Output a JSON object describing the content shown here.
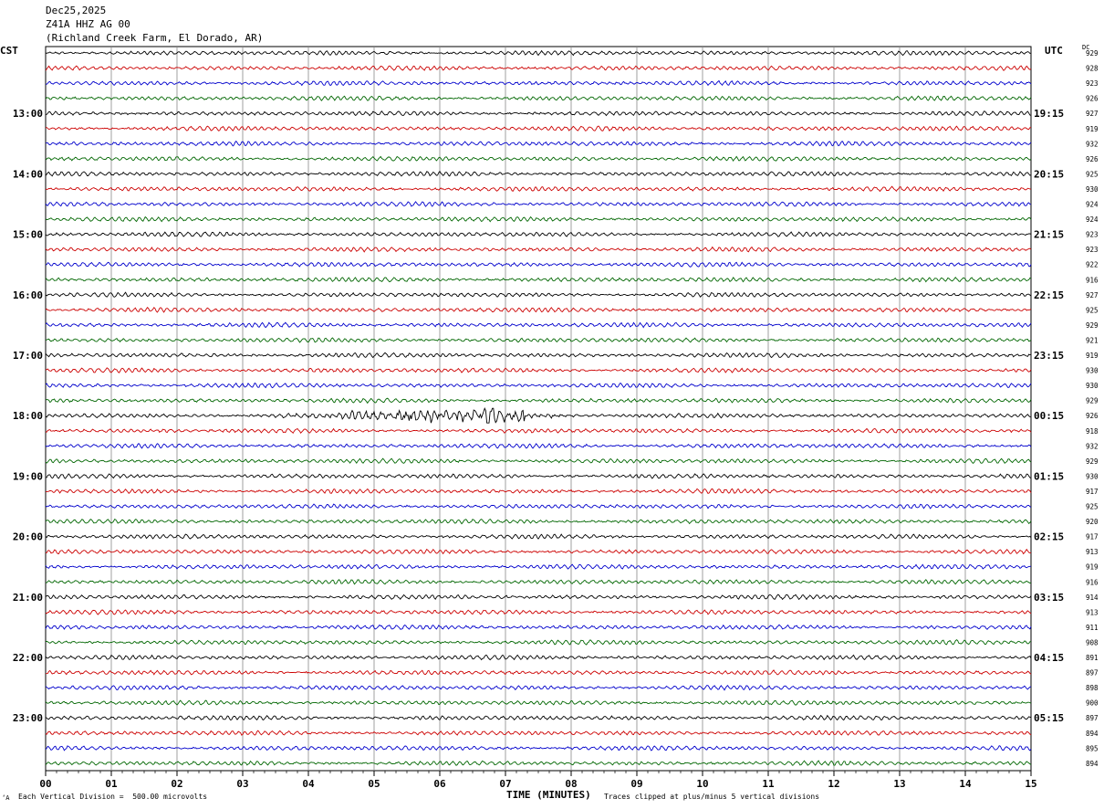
{
  "header": {
    "date": "Dec25,2025",
    "station": "Z41A HHZ AG 00",
    "location": "(Richland Creek Farm, El Dorado, AR)"
  },
  "timezones": {
    "left": "CST",
    "right": "UTC",
    "dc": "DC"
  },
  "footer": {
    "scale_note": "Each Vertical Division =  500.00 microvolts",
    "axis_title": "TIME (MINUTES)",
    "clip_note": "Traces clipped at plus/minus 5 vertical divisions",
    "corner_mark": "‘A"
  },
  "colors": {
    "trace_cycle": [
      "#000000",
      "#cc0000",
      "#0000cc",
      "#006600"
    ],
    "grid": "#888888"
  },
  "chart_data": {
    "type": "line",
    "title": "",
    "xlabel": "TIME (MINUTES)",
    "x_ticks": [
      "00",
      "01",
      "02",
      "03",
      "04",
      "05",
      "06",
      "07",
      "08",
      "09",
      "10",
      "11",
      "12",
      "13",
      "14",
      "15"
    ],
    "xlim": [
      0,
      15
    ],
    "rows_per_hour": 4,
    "row_count": 48,
    "left_hour_labels": [
      "13:00",
      "14:00",
      "15:00",
      "16:00",
      "17:00",
      "18:00",
      "19:00",
      "20:00",
      "21:00",
      "22:00",
      "23:00"
    ],
    "right_hour_labels": [
      "19:15",
      "20:15",
      "21:15",
      "22:15",
      "23:15",
      "00:15",
      "01:15",
      "02:15",
      "03:15",
      "04:15",
      "05:15"
    ],
    "first_labeled_row": 4,
    "dc_offsets": [
      929,
      928,
      923,
      926,
      927,
      919,
      932,
      926,
      925,
      930,
      924,
      924,
      923,
      923,
      922,
      916,
      927,
      925,
      929,
      921,
      919,
      930,
      930,
      929,
      926,
      918,
      932,
      929,
      930,
      917,
      925,
      920,
      917,
      913,
      919,
      916,
      914,
      913,
      911,
      908,
      891,
      897,
      898,
      900,
      897,
      894,
      895,
      894
    ],
    "event": {
      "row": 24,
      "start_minute": 3.5,
      "peak_minute": 6.8,
      "end_minute": 7.8
    }
  }
}
